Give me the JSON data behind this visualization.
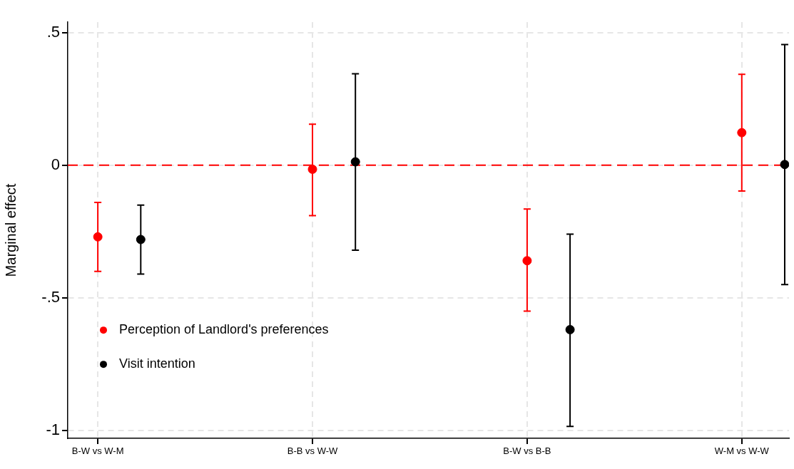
{
  "chart_data": {
    "type": "scatter",
    "ylabel": "Marginal effect",
    "categories": [
      "B-W vs W-M",
      "B-B vs W-W",
      "B-W vs B-B",
      "W-M vs W-W"
    ],
    "ylim": [
      -1.03,
      0.54
    ],
    "yticks": [
      {
        "value": 0.5,
        "label": ".5"
      },
      0,
      {
        "value": -0.5,
        "label": "-.5"
      },
      -1
    ],
    "series": [
      {
        "name": "Perception of Landlord's preferences",
        "color": "#ff0000",
        "values": [
          -0.27,
          -0.015,
          -0.36,
          0.123
        ],
        "errors": [
          [
            -0.4,
            -0.14
          ],
          [
            -0.19,
            0.155
          ],
          [
            -0.55,
            -0.165
          ],
          [
            -0.097,
            0.343
          ]
        ]
      },
      {
        "name": "Visit intention",
        "color": "#000000",
        "values": [
          -0.28,
          0.013,
          -0.62,
          0.003
        ],
        "errors": [
          [
            -0.41,
            -0.15
          ],
          [
            -0.32,
            0.345
          ],
          [
            -0.985,
            -0.26
          ],
          [
            -0.45,
            0.455
          ]
        ]
      }
    ],
    "ref_lines": [
      {
        "axis": "y",
        "value": 0,
        "color": "#ff0000",
        "line_style": "dashed"
      }
    ],
    "grid": true,
    "legend": "left",
    "marker": "circle"
  }
}
